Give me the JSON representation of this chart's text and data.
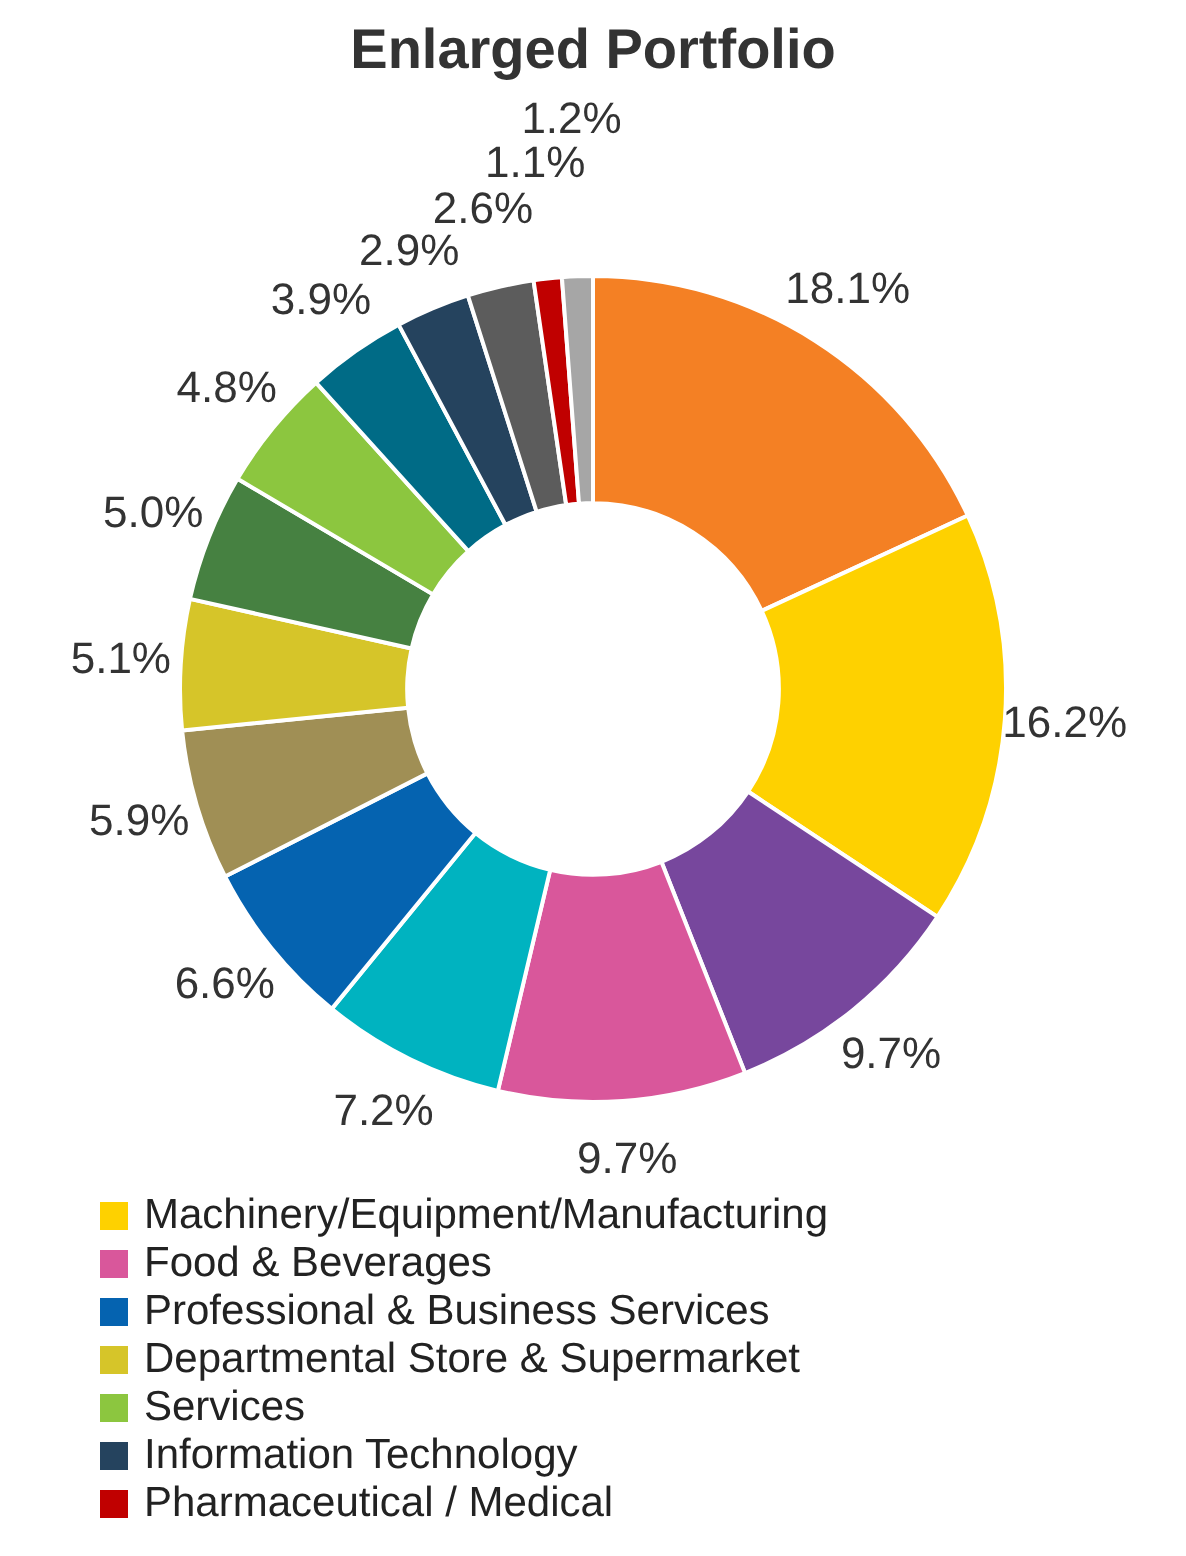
{
  "chart_data": {
    "type": "donut",
    "title": "Enlarged Portfolio",
    "categories": [
      null,
      "Machinery/Equipment/Manufacturing",
      null,
      "Food & Beverages",
      null,
      "Professional & Business Services",
      null,
      "Departmental Store & Supermarket",
      null,
      "Services",
      null,
      "Information Technology",
      null,
      "Pharmaceutical / Medical",
      null
    ],
    "values": [
      18.1,
      16.2,
      9.7,
      9.7,
      7.2,
      6.6,
      5.9,
      5.1,
      5.0,
      4.8,
      3.9,
      2.9,
      2.6,
      1.1,
      1.2
    ],
    "value_labels": [
      "18.1%",
      "16.2%",
      "9.7%",
      "9.7%",
      "7.2%",
      "6.6%",
      "5.9%",
      "5.1%",
      "5.0%",
      "4.8%",
      "3.9%",
      "2.9%",
      "2.6%",
      "1.1%",
      "1.2%"
    ],
    "colors": [
      "#f48024",
      "#fed100",
      "#77479d",
      "#d9579b",
      "#00b3c0",
      "#0563b0",
      "#a08f55",
      "#d6c529",
      "#468141",
      "#8cc63f",
      "#006b86",
      "#25435e",
      "#5c5c5c",
      "#c00000",
      "#a6a6a6"
    ],
    "legend": "bottom"
  }
}
